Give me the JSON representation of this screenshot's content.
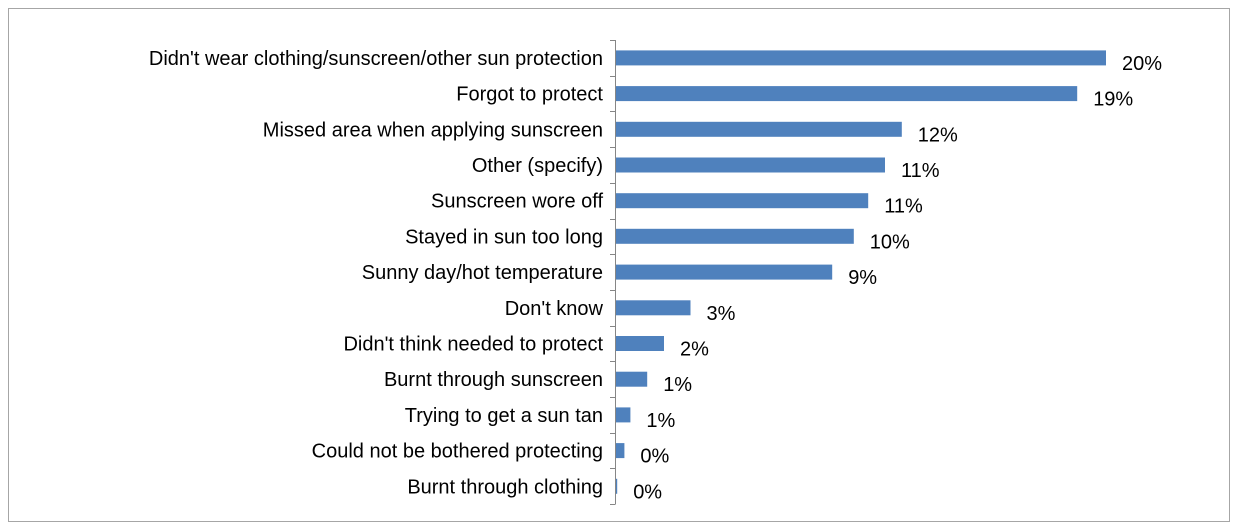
{
  "chart_data": {
    "type": "bar",
    "orientation": "horizontal",
    "categories": [
      "Didn't wear clothing/sunscreen/other sun protection",
      "Forgot to protect",
      "Missed area when applying sunscreen",
      "Other (specify)",
      "Sunscreen wore off",
      "Stayed in sun too long",
      "Sunny day/hot temperature",
      "Don't know",
      "Didn't think needed to protect",
      "Burnt through sunscreen",
      "Trying to get a sun tan",
      "Could not be bothered protecting",
      "Burnt through clothing"
    ],
    "values": [
      20,
      19,
      12,
      11,
      11,
      10,
      9,
      3,
      2,
      1,
      1,
      0,
      0
    ],
    "raw_values": [
      20.4,
      19.2,
      11.9,
      11.2,
      10.5,
      9.9,
      9.0,
      3.1,
      2.0,
      1.3,
      0.6,
      0.35,
      0.05
    ],
    "data_labels": [
      "20%",
      "19%",
      "12%",
      "11%",
      "11%",
      "10%",
      "9%",
      "3%",
      "2%",
      "1%",
      "1%",
      "0%",
      "0%"
    ],
    "bar_color": "#4f81bd",
    "axis_color": "#868686",
    "title": "",
    "xlabel": "",
    "ylabel": "",
    "xlim": [
      0,
      20.4
    ],
    "grid": false,
    "legend": "none"
  }
}
